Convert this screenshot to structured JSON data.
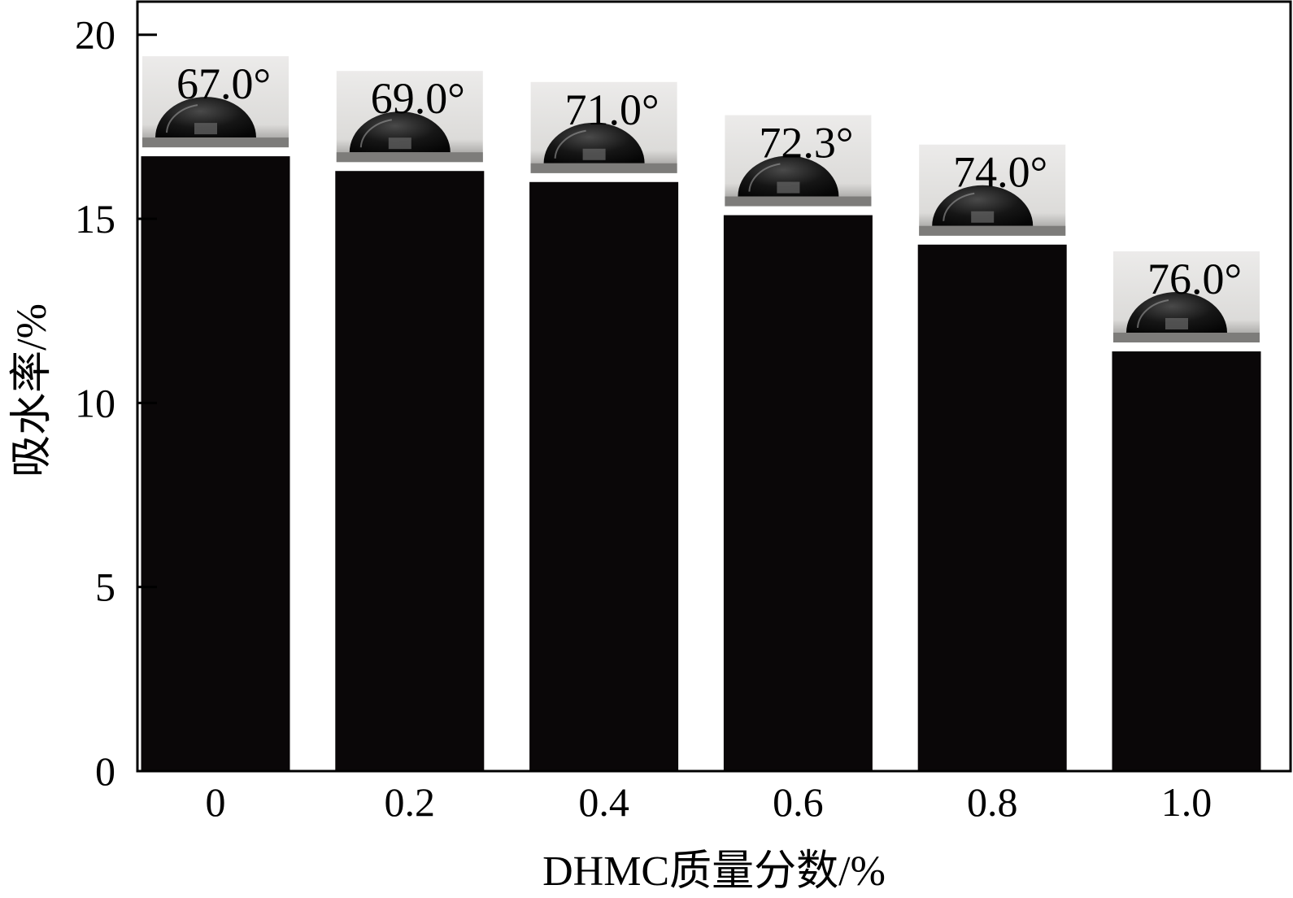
{
  "chart_data": {
    "type": "bar",
    "xlabel": "DHMC质量分数/%",
    "ylabel": "吸水率/%",
    "categories": [
      "0",
      "0.2",
      "0.4",
      "0.6",
      "0.8",
      "1.0"
    ],
    "values": [
      16.7,
      16.3,
      16.0,
      15.1,
      14.3,
      11.4
    ],
    "ylim": [
      0,
      20.9
    ],
    "yticks": [
      0,
      5,
      10,
      15,
      20
    ],
    "annotations": [
      "67.0°",
      "69.0°",
      "71.0°",
      "72.3°",
      "74.0°",
      "76.0°"
    ],
    "annotation_type": "water droplet contact-angle photo above each bar",
    "grid": false,
    "legend": "none",
    "colors": {
      "bar": "#0a0708",
      "photo_background": "#e4e3e1",
      "droplet": "#1a1a1a"
    }
  }
}
